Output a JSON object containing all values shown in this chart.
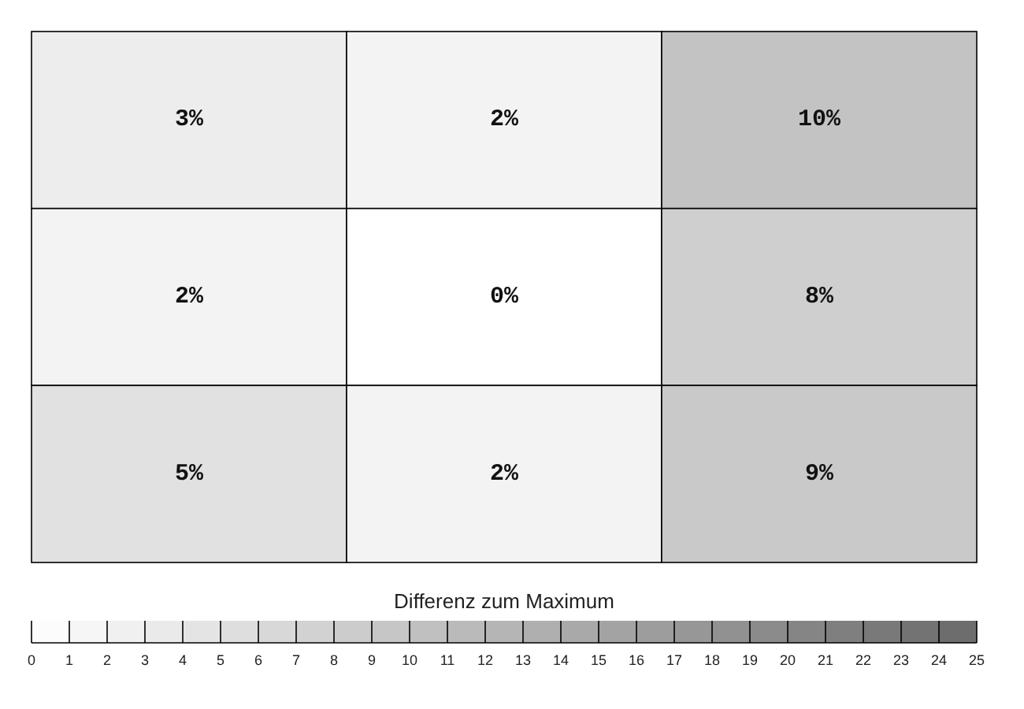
{
  "chart_data": {
    "type": "heatmap",
    "categories": [
      null,
      null,
      null
    ],
    "y_categories": [
      null,
      null,
      null
    ],
    "cells": [
      [
        3,
        2,
        10
      ],
      [
        2,
        0,
        8
      ],
      [
        5,
        2,
        9
      ]
    ],
    "cell_labels": [
      [
        "3%",
        "2%",
        "10%"
      ],
      [
        "2%",
        "0%",
        "8%"
      ],
      [
        "5%",
        "2%",
        "9%"
      ]
    ],
    "clabel": "Differenz zum Maximum",
    "clim": [
      0,
      25
    ],
    "cticks": [
      0,
      1,
      2,
      3,
      4,
      5,
      6,
      7,
      8,
      9,
      10,
      11,
      12,
      13,
      14,
      15,
      16,
      17,
      18,
      19,
      20,
      21,
      22,
      23,
      24,
      25
    ]
  }
}
